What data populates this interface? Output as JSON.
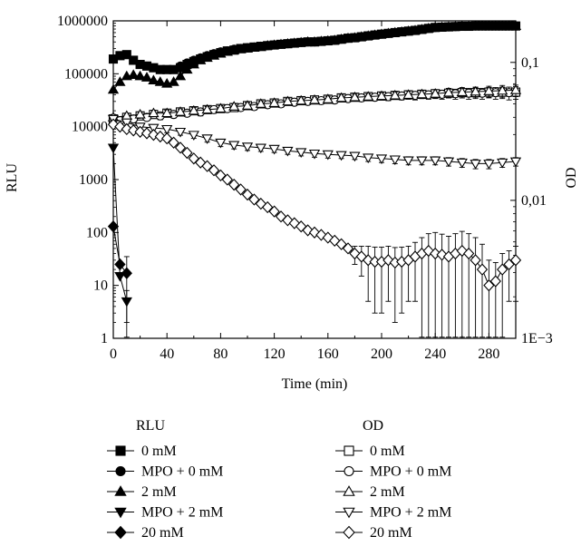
{
  "chart_data": {
    "type": "scatter",
    "xlabel": "Time (min)",
    "ylabel": "RLU",
    "y2label": "OD",
    "x_ticks": [
      "0",
      "40",
      "80",
      "120",
      "160",
      "200",
      "240",
      "280"
    ],
    "xlim": [
      0,
      300
    ],
    "ylim": [
      1,
      1000000
    ],
    "yscale": "log",
    "y_ticks": [
      "1",
      "10",
      "100",
      "1000",
      "10000",
      "100000",
      "1000000"
    ],
    "y2lim": [
      0.001,
      0.2
    ],
    "y2scale": "log",
    "y2_ticks": [
      "1E−3",
      "0,01",
      "0,1"
    ],
    "legend_groups": [
      "RLU",
      "OD"
    ],
    "series": [
      {
        "name": "0 mM",
        "group": "RLU",
        "marker": "square",
        "filled": true,
        "axis": "left",
        "x": [
          0,
          5,
          10,
          15,
          20,
          25,
          30,
          35,
          40,
          45,
          50,
          55,
          60,
          65,
          70,
          75,
          80,
          85,
          90,
          95,
          100,
          105,
          110,
          115,
          120,
          125,
          130,
          135,
          140,
          145,
          150,
          155,
          160,
          165,
          170,
          175,
          180,
          185,
          190,
          195,
          200,
          205,
          210,
          215,
          220,
          225,
          230,
          235,
          240,
          245,
          250,
          255,
          260,
          265,
          270,
          275,
          280,
          285,
          290,
          295,
          300
        ],
        "y": [
          190000,
          220000,
          230000,
          180000,
          150000,
          140000,
          130000,
          120000,
          120000,
          120000,
          130000,
          150000,
          170000,
          190000,
          210000,
          230000,
          250000,
          270000,
          280000,
          300000,
          310000,
          320000,
          330000,
          340000,
          350000,
          360000,
          370000,
          380000,
          390000,
          400000,
          400000,
          410000,
          420000,
          430000,
          450000,
          470000,
          480000,
          500000,
          520000,
          540000,
          560000,
          580000,
          600000,
          620000,
          640000,
          660000,
          690000,
          720000,
          750000,
          760000,
          770000,
          780000,
          790000,
          790000,
          800000,
          800000,
          800000,
          800000,
          800000,
          800000,
          800000
        ]
      },
      {
        "name": "MPO + 0 mM",
        "group": "RLU",
        "marker": "circle",
        "filled": true,
        "axis": "left",
        "x": [
          50,
          55,
          60,
          65,
          70,
          75,
          80,
          85,
          90,
          95,
          100,
          105,
          110,
          115,
          120,
          125,
          130,
          135,
          140,
          145,
          150,
          155,
          160,
          165,
          170,
          175,
          180,
          185,
          190,
          195,
          200,
          205,
          210,
          215,
          220,
          225,
          230,
          235,
          240,
          245,
          250,
          255,
          260,
          265,
          270,
          275,
          280,
          285,
          290,
          295,
          300
        ],
        "y": [
          140000,
          160000,
          180000,
          200000,
          220000,
          240000,
          260000,
          270000,
          290000,
          300000,
          310000,
          320000,
          330000,
          340000,
          350000,
          360000,
          370000,
          380000,
          390000,
          400000,
          400000,
          410000,
          420000,
          430000,
          450000,
          470000,
          480000,
          500000,
          520000,
          540000,
          560000,
          580000,
          600000,
          620000,
          640000,
          660000,
          690000,
          720000,
          750000,
          760000,
          770000,
          780000,
          790000,
          790000,
          800000,
          800000,
          800000,
          800000,
          800000,
          800000,
          800000
        ]
      },
      {
        "name": "2 mM",
        "group": "RLU",
        "marker": "triangle-up",
        "filled": true,
        "axis": "left",
        "x": [
          0,
          5,
          10,
          15,
          20,
          25,
          30,
          35,
          40,
          45,
          50,
          55,
          60,
          65,
          70,
          75,
          80,
          85,
          90,
          95,
          100,
          105,
          110,
          115,
          120,
          125,
          130,
          135,
          140,
          145,
          150,
          155,
          160,
          165,
          170,
          175,
          180,
          185,
          190,
          195,
          200,
          205,
          210,
          215,
          220,
          225,
          230,
          235,
          240,
          245,
          250,
          255,
          260,
          265,
          270,
          275,
          280,
          285,
          290,
          295,
          300
        ],
        "y": [
          50000,
          70000,
          90000,
          95000,
          90000,
          85000,
          75000,
          70000,
          65000,
          70000,
          90000,
          120000,
          150000,
          180000,
          200000,
          220000,
          240000,
          260000,
          280000,
          290000,
          300000,
          310000,
          320000,
          340000,
          350000,
          360000,
          370000,
          380000,
          390000,
          400000,
          400000,
          410000,
          420000,
          430000,
          450000,
          470000,
          480000,
          500000,
          520000,
          540000,
          560000,
          580000,
          600000,
          620000,
          640000,
          660000,
          690000,
          720000,
          750000,
          760000,
          770000,
          780000,
          790000,
          790000,
          800000,
          800000,
          800000,
          800000,
          800000,
          800000,
          800000
        ]
      },
      {
        "name": "MPO + 2 mM",
        "group": "RLU",
        "marker": "triangle-down",
        "filled": true,
        "axis": "left",
        "x": [
          0,
          5,
          10
        ],
        "y": [
          4000,
          15,
          5
        ],
        "err": [
          0,
          0,
          3
        ]
      },
      {
        "name": "20 mM",
        "group": "RLU",
        "marker": "diamond",
        "filled": true,
        "axis": "left",
        "x": [
          0,
          5,
          10
        ],
        "y": [
          130,
          25,
          17
        ],
        "err": [
          0,
          0,
          18
        ]
      },
      {
        "name": "0 mM",
        "group": "OD",
        "marker": "square",
        "filled": false,
        "axis": "left",
        "x": [
          0,
          10,
          20,
          30,
          40,
          50,
          60,
          70,
          80,
          90,
          100,
          110,
          120,
          130,
          140,
          150,
          160,
          170,
          180,
          190,
          200,
          210,
          220,
          230,
          240,
          250,
          260,
          270,
          280,
          290,
          300
        ],
        "y": [
          14000,
          15000,
          16000,
          17000,
          18000,
          19000,
          20000,
          21000,
          22000,
          23000,
          25000,
          27000,
          28000,
          30000,
          31000,
          32000,
          33000,
          35000,
          36000,
          37000,
          38000,
          39000,
          40000,
          41000,
          42000,
          43000,
          44000,
          44000,
          45000,
          45000,
          45000
        ],
        "err": [
          2000,
          2000,
          2000,
          2000,
          2500,
          2500,
          2500,
          3000,
          3000,
          3000,
          3000,
          3500,
          3500,
          3500,
          4000,
          4000,
          4000,
          4500,
          4500,
          5000,
          5000,
          6000,
          6000,
          7000,
          7000,
          8000,
          9000,
          10000,
          10000,
          11000,
          12000
        ]
      },
      {
        "name": "MPO + 0 mM",
        "group": "OD",
        "marker": "circle",
        "filled": false,
        "axis": "left",
        "x": [
          5,
          15,
          25,
          35,
          45,
          55,
          65,
          75,
          85,
          95,
          105,
          115,
          125,
          135,
          145,
          155,
          165,
          175,
          185,
          195,
          205,
          215,
          225,
          235,
          245,
          255,
          265,
          275,
          285,
          295
        ],
        "y": [
          13000,
          14000,
          15000,
          16000,
          17000,
          18000,
          19000,
          21000,
          22000,
          23000,
          24000,
          26000,
          27000,
          29000,
          30000,
          31000,
          32000,
          34000,
          35000,
          36000,
          37000,
          38000,
          39000,
          40000,
          41000,
          42000,
          43000,
          43000,
          44000,
          44000
        ],
        "err": [
          2000,
          2000,
          2000,
          2500,
          2500,
          2500,
          3000,
          3000,
          3000,
          3000,
          3500,
          3500,
          3500,
          4000,
          4000,
          4000,
          4500,
          4500,
          5000,
          5000,
          6000,
          6000,
          7000,
          7000,
          8000,
          9000,
          10000,
          10000,
          11000,
          12000
        ]
      },
      {
        "name": "2 mM",
        "group": "OD",
        "marker": "triangle-up",
        "filled": false,
        "axis": "left",
        "x": [
          0,
          10,
          20,
          30,
          40,
          50,
          60,
          70,
          80,
          90,
          100,
          110,
          120,
          130,
          140,
          150,
          160,
          170,
          180,
          190,
          200,
          210,
          220,
          230,
          240,
          250,
          260,
          270,
          280,
          290,
          300
        ],
        "y": [
          15000,
          16000,
          17000,
          18000,
          18000,
          19000,
          20000,
          21000,
          22000,
          24000,
          25000,
          27000,
          28000,
          30000,
          31000,
          32000,
          33000,
          35000,
          36000,
          37000,
          38000,
          39000,
          40000,
          41000,
          42000,
          44000,
          45000,
          46000,
          47000,
          48000,
          49000
        ],
        "err": [
          2000,
          2000,
          2000,
          2500,
          2500,
          2500,
          3000,
          3000,
          3000,
          3000,
          3500,
          3500,
          3500,
          4000,
          4000,
          4000,
          4500,
          4500,
          5000,
          5000,
          6000,
          6000,
          7000,
          7000,
          8000,
          9000,
          10000,
          10000,
          11000,
          12000,
          12000
        ]
      },
      {
        "name": "MPO + 2 mM",
        "group": "OD",
        "marker": "triangle-down",
        "filled": false,
        "axis": "left",
        "x": [
          0,
          10,
          20,
          30,
          40,
          50,
          60,
          70,
          80,
          90,
          100,
          110,
          120,
          130,
          140,
          150,
          160,
          170,
          180,
          190,
          200,
          210,
          220,
          230,
          240,
          250,
          260,
          270,
          280,
          290,
          300
        ],
        "y": [
          14000,
          12000,
          10000,
          9500,
          9000,
          8000,
          7000,
          6000,
          5000,
          4500,
          4200,
          4000,
          3800,
          3500,
          3300,
          3100,
          3000,
          2900,
          2800,
          2600,
          2500,
          2400,
          2300,
          2300,
          2300,
          2200,
          2100,
          2000,
          2000,
          2100,
          2200
        ],
        "err": [
          2000,
          1800,
          1500,
          1400,
          1300,
          1100,
          1000,
          900,
          800,
          700,
          650,
          600,
          550,
          500,
          500,
          450,
          450,
          400,
          400,
          400,
          400,
          400,
          400,
          400,
          400,
          400,
          400,
          400,
          400,
          400,
          400
        ]
      },
      {
        "name": "20 mM",
        "group": "OD",
        "marker": "diamond",
        "filled": false,
        "axis": "left",
        "x": [
          0,
          5,
          10,
          15,
          20,
          25,
          30,
          35,
          40,
          45,
          50,
          55,
          60,
          65,
          70,
          75,
          80,
          85,
          90,
          95,
          100,
          105,
          110,
          115,
          120,
          125,
          130,
          135,
          140,
          145,
          150,
          155,
          160,
          165,
          170,
          175,
          180,
          185,
          190,
          195,
          200,
          205,
          210,
          215,
          220,
          225,
          230,
          235,
          240,
          245,
          250,
          255,
          260,
          265,
          270,
          275,
          280,
          285,
          290,
          295,
          300
        ],
        "y": [
          11000,
          10000,
          9000,
          8500,
          8000,
          7500,
          7000,
          6500,
          6000,
          5000,
          4000,
          3200,
          2500,
          2100,
          1800,
          1500,
          1200,
          1000,
          800,
          650,
          520,
          420,
          350,
          300,
          250,
          200,
          170,
          150,
          130,
          110,
          100,
          90,
          80,
          70,
          60,
          50,
          40,
          35,
          30,
          28,
          28,
          30,
          27,
          28,
          30,
          35,
          40,
          45,
          40,
          38,
          35,
          40,
          45,
          40,
          30,
          20,
          10,
          12,
          20,
          25,
          30
        ],
        "err": [
          0,
          0,
          0,
          0,
          0,
          0,
          0,
          0,
          0,
          0,
          0,
          0,
          0,
          0,
          0,
          0,
          0,
          0,
          0,
          0,
          0,
          0,
          0,
          0,
          0,
          0,
          0,
          0,
          0,
          0,
          0,
          0,
          0,
          0,
          0,
          0,
          15,
          20,
          25,
          25,
          25,
          25,
          25,
          25,
          25,
          30,
          40,
          50,
          60,
          55,
          50,
          55,
          60,
          55,
          50,
          40,
          20,
          15,
          20,
          20,
          25
        ]
      }
    ]
  }
}
